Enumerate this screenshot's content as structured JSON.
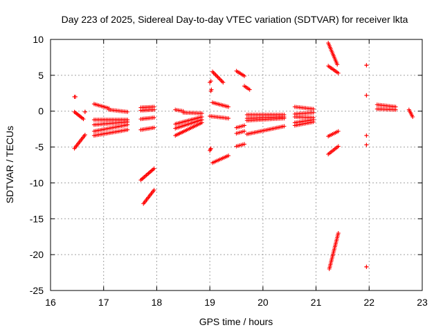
{
  "chart_data": {
    "type": "scatter",
    "title": "Day 223 of 2025, Sidereal Day-to-day VTEC variation (SDTVAR) for receiver lkta",
    "xlabel": "GPS time / hours",
    "ylabel": "SDTVAR / TECUs",
    "xlim": [
      16,
      23
    ],
    "ylim": [
      -25,
      10
    ],
    "xticks": [
      "16",
      "17",
      "18",
      "19",
      "20",
      "21",
      "22",
      "23"
    ],
    "yticks": [
      "10",
      "5",
      "0",
      "-5",
      "-10",
      "-15",
      "-20",
      "-25"
    ],
    "grid": true,
    "marker": "plus",
    "color": "#ff0000",
    "segments": [
      {
        "x": [
          16.45,
          16.47
        ],
        "y": [
          2.0,
          2.0
        ]
      },
      {
        "x": [
          16.45,
          16.62
        ],
        "y": [
          -0.1,
          -1.1
        ]
      },
      {
        "x": [
          16.65,
          16.65
        ],
        "y": [
          -0.1,
          -0.1
        ]
      },
      {
        "x": [
          16.45,
          16.65
        ],
        "y": [
          -5.2,
          -3.3
        ]
      },
      {
        "x": [
          16.82,
          17.1
        ],
        "y": [
          1.0,
          0.4
        ]
      },
      {
        "x": [
          17.1,
          17.45
        ],
        "y": [
          0.2,
          -0.1
        ]
      },
      {
        "x": [
          16.82,
          17.45
        ],
        "y": [
          -1.2,
          -1.2
        ]
      },
      {
        "x": [
          16.82,
          17.45
        ],
        "y": [
          -1.9,
          -1.5
        ]
      },
      {
        "x": [
          16.82,
          17.45
        ],
        "y": [
          -2.8,
          -1.9
        ]
      },
      {
        "x": [
          16.82,
          17.45
        ],
        "y": [
          -3.4,
          -2.6
        ]
      },
      {
        "x": [
          17.7,
          17.95
        ],
        "y": [
          0.5,
          0.6
        ]
      },
      {
        "x": [
          17.7,
          17.95
        ],
        "y": [
          0.1,
          0.2
        ]
      },
      {
        "x": [
          17.7,
          17.95
        ],
        "y": [
          -1.1,
          -0.9
        ]
      },
      {
        "x": [
          17.7,
          17.95
        ],
        "y": [
          -2.6,
          -2.3
        ]
      },
      {
        "x": [
          17.7,
          17.95
        ],
        "y": [
          -9.6,
          -8.0
        ]
      },
      {
        "x": [
          17.75,
          17.95
        ],
        "y": [
          -12.9,
          -11.0
        ]
      },
      {
        "x": [
          18.35,
          18.5
        ],
        "y": [
          0.2,
          0.0
        ]
      },
      {
        "x": [
          18.5,
          18.85
        ],
        "y": [
          -0.2,
          -0.3
        ]
      },
      {
        "x": [
          18.35,
          18.85
        ],
        "y": [
          -1.8,
          -0.8
        ]
      },
      {
        "x": [
          18.35,
          18.85
        ],
        "y": [
          -2.4,
          -1.2
        ]
      },
      {
        "x": [
          18.35,
          18.85
        ],
        "y": [
          -3.4,
          -1.6
        ]
      },
      {
        "x": [
          19.0,
          19.02
        ],
        "y": [
          4.0,
          4.2
        ]
      },
      {
        "x": [
          19.02,
          19.03
        ],
        "y": [
          2.8,
          3.0
        ]
      },
      {
        "x": [
          19.05,
          19.25
        ],
        "y": [
          5.5,
          4.0
        ]
      },
      {
        "x": [
          19.0,
          19.02
        ],
        "y": [
          -5.5,
          -5.2
        ]
      },
      {
        "x": [
          19.05,
          19.35
        ],
        "y": [
          1.2,
          0.6
        ]
      },
      {
        "x": [
          19.0,
          19.35
        ],
        "y": [
          -0.7,
          -1.0
        ]
      },
      {
        "x": [
          19.05,
          19.35
        ],
        "y": [
          -7.2,
          -6.2
        ]
      },
      {
        "x": [
          19.5,
          19.65
        ],
        "y": [
          5.6,
          4.9
        ]
      },
      {
        "x": [
          19.65,
          19.75
        ],
        "y": [
          3.5,
          3.0
        ]
      },
      {
        "x": [
          19.5,
          19.65
        ],
        "y": [
          -2.3,
          -2.0
        ]
      },
      {
        "x": [
          19.5,
          19.65
        ],
        "y": [
          -3.1,
          -2.8
        ]
      },
      {
        "x": [
          19.5,
          19.65
        ],
        "y": [
          -4.9,
          -4.6
        ]
      },
      {
        "x": [
          19.7,
          20.4
        ],
        "y": [
          -0.5,
          -0.5
        ]
      },
      {
        "x": [
          19.7,
          20.4
        ],
        "y": [
          -1.0,
          -0.8
        ]
      },
      {
        "x": [
          19.7,
          20.4
        ],
        "y": [
          -1.3,
          -1.0
        ]
      },
      {
        "x": [
          19.7,
          20.4
        ],
        "y": [
          -3.2,
          -2.1
        ]
      },
      {
        "x": [
          20.6,
          20.95
        ],
        "y": [
          0.6,
          0.3
        ]
      },
      {
        "x": [
          20.6,
          20.95
        ],
        "y": [
          -0.4,
          -0.2
        ]
      },
      {
        "x": [
          20.6,
          20.95
        ],
        "y": [
          -0.8,
          -0.9
        ]
      },
      {
        "x": [
          20.6,
          20.95
        ],
        "y": [
          -1.6,
          -1.2
        ]
      },
      {
        "x": [
          20.6,
          20.95
        ],
        "y": [
          -2.0,
          -1.5
        ]
      },
      {
        "x": [
          21.23,
          21.4
        ],
        "y": [
          9.5,
          6.5
        ]
      },
      {
        "x": [
          21.23,
          21.42
        ],
        "y": [
          6.3,
          5.3
        ]
      },
      {
        "x": [
          21.23,
          21.42
        ],
        "y": [
          -3.5,
          -2.8
        ]
      },
      {
        "x": [
          21.23,
          21.42
        ],
        "y": [
          -6.0,
          -4.9
        ]
      },
      {
        "x": [
          21.25,
          21.42
        ],
        "y": [
          -22.0,
          -17.0
        ]
      },
      {
        "x": [
          21.95,
          21.95
        ],
        "y": [
          6.4,
          6.4
        ]
      },
      {
        "x": [
          21.95,
          21.95
        ],
        "y": [
          2.2,
          2.2
        ]
      },
      {
        "x": [
          21.95,
          21.95
        ],
        "y": [
          -3.4,
          -3.4
        ]
      },
      {
        "x": [
          21.95,
          21.95
        ],
        "y": [
          -4.7,
          -4.7
        ]
      },
      {
        "x": [
          21.95,
          21.95
        ],
        "y": [
          -21.7,
          -21.7
        ]
      },
      {
        "x": [
          22.15,
          22.5
        ],
        "y": [
          0.9,
          0.6
        ]
      },
      {
        "x": [
          22.15,
          22.5
        ],
        "y": [
          0.3,
          0.2
        ]
      },
      {
        "x": [
          22.75,
          22.82
        ],
        "y": [
          0.2,
          -0.8
        ]
      }
    ]
  }
}
